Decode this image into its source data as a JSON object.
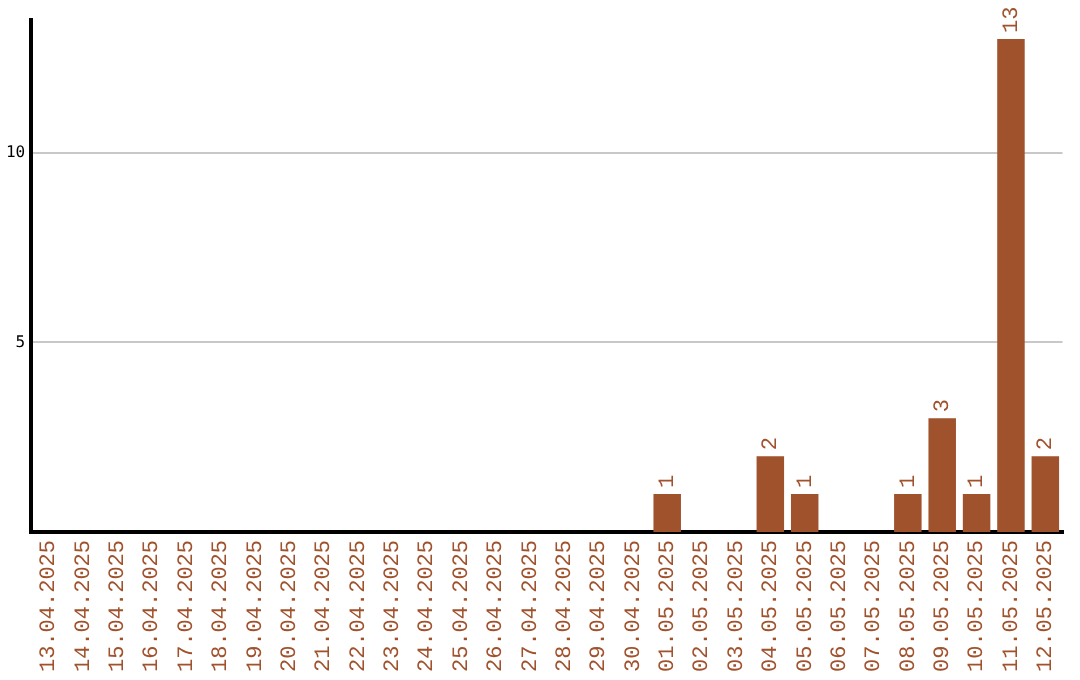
{
  "chart_data": {
    "type": "bar",
    "categories": [
      "13.04.2025",
      "14.04.2025",
      "15.04.2025",
      "16.04.2025",
      "17.04.2025",
      "18.04.2025",
      "19.04.2025",
      "20.04.2025",
      "21.04.2025",
      "22.04.2025",
      "23.04.2025",
      "24.04.2025",
      "25.04.2025",
      "26.04.2025",
      "27.04.2025",
      "28.04.2025",
      "29.04.2025",
      "30.04.2025",
      "01.05.2025",
      "02.05.2025",
      "03.05.2025",
      "04.05.2025",
      "05.05.2025",
      "06.05.2025",
      "07.05.2025",
      "08.05.2025",
      "09.05.2025",
      "10.05.2025",
      "11.05.2025",
      "12.05.2025"
    ],
    "values": [
      0,
      0,
      0,
      0,
      0,
      0,
      0,
      0,
      0,
      0,
      0,
      0,
      0,
      0,
      0,
      0,
      0,
      0,
      1,
      0,
      0,
      2,
      1,
      0,
      0,
      1,
      3,
      1,
      13,
      2
    ],
    "value_labels": [
      null,
      null,
      null,
      null,
      null,
      null,
      null,
      null,
      null,
      null,
      null,
      null,
      null,
      null,
      null,
      null,
      null,
      null,
      "1",
      null,
      null,
      "2",
      "1",
      null,
      null,
      "1",
      "3",
      "1",
      "13",
      "2"
    ],
    "color": "#a0522d",
    "ylim": [
      0,
      13.5
    ],
    "yticks": [
      5,
      10
    ],
    "grid": "y",
    "legend": false
  }
}
